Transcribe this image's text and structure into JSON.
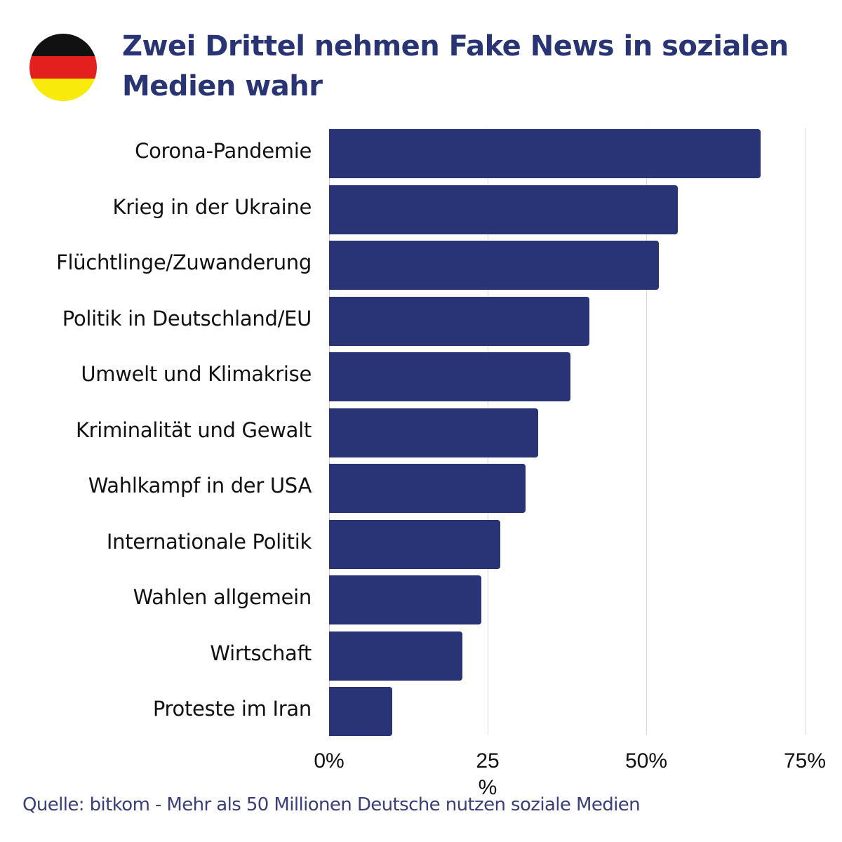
{
  "header": {
    "flag_icon": "germany-flag-icon",
    "flag_colors": [
      "#111111",
      "#e4201f",
      "#f8ea0b"
    ],
    "title": "Zwei Drittel nehmen Fake News in sozialen Medien wahr"
  },
  "colors": {
    "title": "#283473",
    "bar": "#283475",
    "source": "#3a3f7a",
    "grid": "#d9d9d9"
  },
  "axis": {
    "ticks": [
      {
        "label": "0%",
        "value": 0
      },
      {
        "label": "25\n%",
        "value": 25
      },
      {
        "label": "50%",
        "value": 50
      },
      {
        "label": "75%",
        "value": 75
      }
    ]
  },
  "footer": {
    "source": "Quelle: bitkom - Mehr als 50 Millionen Deutsche nutzen soziale Medien"
  },
  "chart_data": {
    "type": "bar",
    "orientation": "horizontal",
    "title": "Zwei Drittel nehmen Fake News in sozialen Medien wahr",
    "xlabel": "",
    "ylabel": "",
    "xlim": [
      0,
      75
    ],
    "grid": true,
    "categories": [
      "Corona-Pandemie",
      "Krieg in der Ukraine",
      "Flüchtlinge/Zuwanderung",
      "Politik in Deutschland/EU",
      "Umwelt und Klimakrise",
      "Kriminalität und Gewalt",
      "Wahlkampf in der USA",
      "Internationale Politik",
      "Wahlen allgemein",
      "Wirtschaft",
      "Proteste im Iran"
    ],
    "values": [
      68,
      55,
      52,
      41,
      38,
      33,
      31,
      27,
      24,
      21,
      10
    ],
    "tick_labels": [
      "0%",
      "25%",
      "50%",
      "75%"
    ],
    "source": "Quelle: bitkom - Mehr als 50 Millionen Deutsche nutzen soziale Medien"
  }
}
